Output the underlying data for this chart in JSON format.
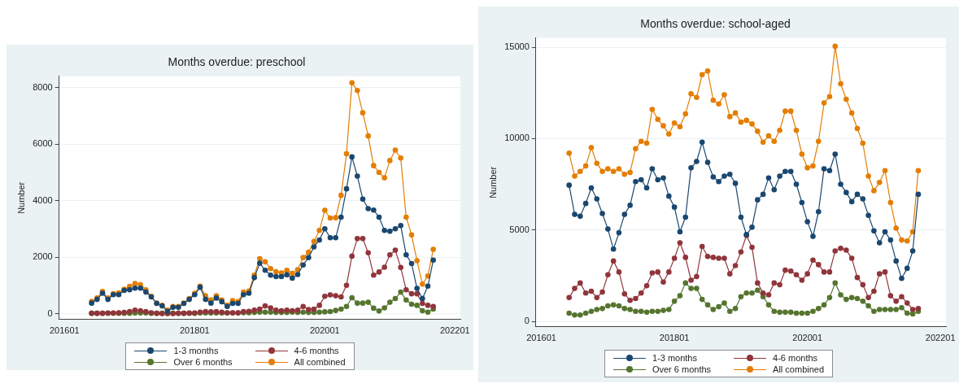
{
  "chart_data": [
    {
      "type": "line",
      "title": "Months overdue: preschool",
      "ylabel": "Number",
      "x": [
        "2016-06",
        "2016-07",
        "2016-08",
        "2016-09",
        "2016-10",
        "2016-11",
        "2016-12",
        "2017-01",
        "2017-02",
        "2017-03",
        "2017-04",
        "2017-05",
        "2017-06",
        "2017-07",
        "2017-08",
        "2017-09",
        "2017-10",
        "2017-11",
        "2017-12",
        "2018-01",
        "2018-02",
        "2018-03",
        "2018-04",
        "2018-05",
        "2018-06",
        "2018-07",
        "2018-08",
        "2018-09",
        "2018-10",
        "2018-11",
        "2018-12",
        "2019-01",
        "2019-02",
        "2019-03",
        "2019-04",
        "2019-05",
        "2019-06",
        "2019-07",
        "2019-08",
        "2019-09",
        "2019-10",
        "2019-11",
        "2019-12",
        "2020-01",
        "2020-02",
        "2020-03",
        "2020-04",
        "2020-05",
        "2020-06",
        "2020-07",
        "2020-08",
        "2020-09",
        "2020-10",
        "2020-11",
        "2020-12",
        "2021-01",
        "2021-02",
        "2021-03",
        "2021-04",
        "2021-05",
        "2021-06",
        "2021-07",
        "2021-08",
        "2021-09"
      ],
      "xlim": [
        "2015-12",
        "2022-02"
      ],
      "xticks": [
        {
          "value": "2016-01",
          "label": "201601"
        },
        {
          "value": "2018-01",
          "label": "201801"
        },
        {
          "value": "2020-01",
          "label": "202001"
        },
        {
          "value": "2022-01",
          "label": "202201"
        }
      ],
      "ylim": [
        -200,
        8400
      ],
      "yticks": [
        0,
        2000,
        4000,
        6000,
        8000
      ],
      "grid": "y",
      "legend": "bottom",
      "marker": "circle",
      "series": [
        {
          "name": "1-3 months",
          "color": "#1a476f",
          "values": [
            380,
            510,
            730,
            510,
            680,
            680,
            830,
            850,
            910,
            910,
            770,
            600,
            370,
            280,
            90,
            230,
            230,
            370,
            510,
            680,
            940,
            510,
            380,
            560,
            430,
            260,
            370,
            370,
            680,
            730,
            1280,
            1790,
            1540,
            1370,
            1320,
            1320,
            1380,
            1260,
            1390,
            1730,
            1990,
            2370,
            2610,
            3010,
            2690,
            2690,
            3420,
            4420,
            5550,
            4870,
            4060,
            3720,
            3670,
            3420,
            2950,
            2920,
            3010,
            3120,
            2090,
            1780,
            900,
            540,
            980,
            1900
          ]
        },
        {
          "name": "4-6 months",
          "color": "#90353b",
          "values": [
            20,
            20,
            20,
            30,
            30,
            40,
            50,
            80,
            130,
            110,
            80,
            40,
            20,
            10,
            10,
            10,
            20,
            20,
            30,
            30,
            60,
            80,
            70,
            80,
            60,
            40,
            40,
            40,
            80,
            90,
            130,
            170,
            280,
            210,
            130,
            110,
            130,
            110,
            130,
            260,
            150,
            170,
            300,
            620,
            670,
            640,
            600,
            1010,
            2040,
            2660,
            2660,
            2160,
            1370,
            1480,
            1650,
            2090,
            2250,
            1640,
            850,
            710,
            710,
            370,
            300,
            260
          ]
        },
        {
          "name": "Over 6 months",
          "color": "#55752f",
          "values": [
            20,
            20,
            20,
            20,
            20,
            20,
            20,
            20,
            30,
            30,
            30,
            20,
            20,
            20,
            20,
            20,
            20,
            20,
            20,
            20,
            30,
            30,
            30,
            30,
            30,
            30,
            30,
            30,
            40,
            40,
            50,
            60,
            60,
            60,
            50,
            50,
            50,
            60,
            50,
            60,
            50,
            50,
            60,
            70,
            80,
            120,
            170,
            260,
            570,
            380,
            380,
            410,
            200,
            100,
            210,
            410,
            540,
            770,
            490,
            340,
            300,
            110,
            60,
            170
          ]
        },
        {
          "name": "All combined",
          "color": "#e37e00",
          "values": [
            440,
            560,
            790,
            560,
            710,
            740,
            870,
            970,
            1070,
            1030,
            850,
            620,
            380,
            300,
            130,
            260,
            260,
            380,
            540,
            730,
            980,
            640,
            490,
            640,
            490,
            300,
            470,
            430,
            770,
            810,
            1370,
            1950,
            1840,
            1600,
            1490,
            1450,
            1540,
            1430,
            1560,
            1990,
            2180,
            2560,
            2950,
            3660,
            3390,
            3400,
            4190,
            5660,
            8170,
            7900,
            7110,
            6290,
            5240,
            5000,
            4810,
            5420,
            5790,
            5510,
            3420,
            2790,
            1880,
            1050,
            1340,
            2280
          ]
        }
      ]
    },
    {
      "type": "line",
      "title": "Months overdue: school-aged",
      "ylabel": "Number",
      "x": [
        "2016-06",
        "2016-07",
        "2016-08",
        "2016-09",
        "2016-10",
        "2016-11",
        "2016-12",
        "2017-01",
        "2017-02",
        "2017-03",
        "2017-04",
        "2017-05",
        "2017-06",
        "2017-07",
        "2017-08",
        "2017-09",
        "2017-10",
        "2017-11",
        "2017-12",
        "2018-01",
        "2018-02",
        "2018-03",
        "2018-04",
        "2018-05",
        "2018-06",
        "2018-07",
        "2018-08",
        "2018-09",
        "2018-10",
        "2018-11",
        "2018-12",
        "2019-01",
        "2019-02",
        "2019-03",
        "2019-04",
        "2019-05",
        "2019-06",
        "2019-07",
        "2019-08",
        "2019-09",
        "2019-10",
        "2019-11",
        "2019-12",
        "2020-01",
        "2020-02",
        "2020-03",
        "2020-04",
        "2020-05",
        "2020-06",
        "2020-07",
        "2020-08",
        "2020-09",
        "2020-10",
        "2020-11",
        "2020-12",
        "2021-01",
        "2021-02",
        "2021-03",
        "2021-04",
        "2021-05",
        "2021-06",
        "2021-07",
        "2021-08",
        "2021-09"
      ],
      "xlim": [
        "2015-12",
        "2022-02"
      ],
      "xticks": [
        {
          "value": "2016-01",
          "label": "201601"
        },
        {
          "value": "2018-01",
          "label": "201801"
        },
        {
          "value": "2020-01",
          "label": "202001"
        },
        {
          "value": "2022-01",
          "label": "202201"
        }
      ],
      "ylim": [
        -300,
        15500
      ],
      "yticks": [
        0,
        5000,
        10000,
        15000
      ],
      "grid": "y",
      "legend": "bottom",
      "marker": "circle",
      "series": [
        {
          "name": "1-3 months",
          "color": "#1a476f",
          "values": [
            7450,
            5850,
            5750,
            6450,
            7300,
            6700,
            5900,
            5050,
            3950,
            4850,
            5850,
            6350,
            7650,
            7750,
            7300,
            8350,
            7750,
            7850,
            6850,
            6250,
            4900,
            5700,
            8400,
            8750,
            9800,
            8700,
            7900,
            7650,
            7950,
            8050,
            7550,
            5700,
            4750,
            5150,
            6650,
            6950,
            7850,
            7200,
            7950,
            8200,
            8200,
            7500,
            6500,
            5450,
            4650,
            6000,
            8350,
            8250,
            9150,
            7500,
            7050,
            6550,
            6950,
            6700,
            5800,
            4950,
            4300,
            4900,
            4450,
            3300,
            2350,
            2900,
            3850,
            6950
          ]
        },
        {
          "name": "4-6 months",
          "color": "#90353b",
          "values": [
            1300,
            1800,
            2100,
            1550,
            1650,
            1300,
            1600,
            2550,
            3300,
            2700,
            1500,
            1150,
            1250,
            1550,
            1950,
            2650,
            2700,
            2150,
            2700,
            3450,
            4300,
            3500,
            2250,
            2450,
            4100,
            3550,
            3500,
            3450,
            3450,
            2600,
            3050,
            3800,
            4700,
            4050,
            2100,
            1550,
            1450,
            2100,
            2000,
            2800,
            2750,
            2550,
            2250,
            2600,
            3350,
            3100,
            2700,
            2700,
            3850,
            4000,
            3900,
            3450,
            2400,
            2000,
            1300,
            1650,
            2600,
            2700,
            1400,
            1100,
            1350,
            1000,
            650,
            700
          ]
        },
        {
          "name": "Over 6 months",
          "color": "#55752f",
          "values": [
            450,
            350,
            350,
            450,
            550,
            650,
            700,
            850,
            900,
            850,
            700,
            650,
            550,
            550,
            500,
            550,
            550,
            600,
            650,
            1100,
            1400,
            2100,
            1800,
            1800,
            1200,
            900,
            650,
            800,
            1000,
            550,
            700,
            1350,
            1550,
            1550,
            1700,
            1350,
            900,
            550,
            500,
            500,
            500,
            450,
            450,
            450,
            550,
            700,
            900,
            1300,
            2100,
            1450,
            1200,
            1300,
            1250,
            1100,
            850,
            550,
            650,
            650,
            650,
            650,
            750,
            450,
            400,
            550
          ]
        },
        {
          "name": "All combined",
          "color": "#e37e00",
          "values": [
            9200,
            7950,
            8200,
            8500,
            9500,
            8650,
            8200,
            8350,
            8200,
            8350,
            8050,
            8150,
            9450,
            9850,
            9750,
            11600,
            11050,
            10700,
            10250,
            10850,
            10650,
            11350,
            12450,
            12250,
            13500,
            13700,
            12100,
            11900,
            12400,
            11200,
            11400,
            10900,
            11000,
            10800,
            10400,
            9800,
            10150,
            9850,
            10450,
            11500,
            11500,
            10450,
            9150,
            8400,
            8500,
            9850,
            11950,
            12300,
            15050,
            13000,
            12150,
            11400,
            10550,
            9750,
            7950,
            7150,
            7600,
            8250,
            6500,
            5100,
            4450,
            4400,
            4900,
            8250
          ]
        }
      ]
    }
  ]
}
